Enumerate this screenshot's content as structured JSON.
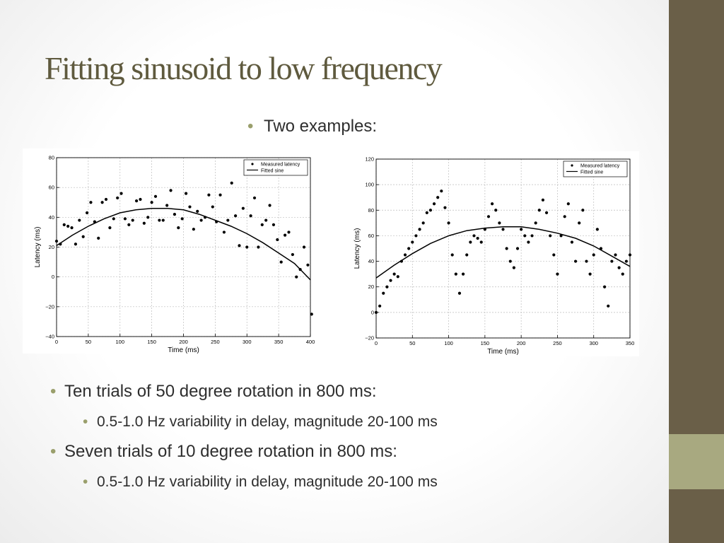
{
  "title": "Fitting sinusoid to low frequency",
  "colors": {
    "title": "#5f5a3e",
    "bullet_dot": "#9a9f6c",
    "side_dark": "#6a5f48",
    "side_light": "#a8a980",
    "text": "#2e2e2e",
    "axes": "#000000"
  },
  "bullets": {
    "intro": "Two examples:",
    "items": [
      {
        "text": "Ten trials of 50 degree rotation in 800 ms:",
        "sub": "0.5-1.0 Hz variability in delay, magnitude 20-100 ms"
      },
      {
        "text": "Seven trials of 10 degree rotation in 800 ms:",
        "sub": "0.5-1.0 Hz variability in delay, magnitude 20-100 ms"
      }
    ]
  },
  "chart_data": [
    {
      "type": "scatter",
      "xlabel": "Time (ms)",
      "ylabel": "Latency (ms)",
      "xlim": [
        0,
        400
      ],
      "ylim": [
        -40,
        80
      ],
      "xticks": [
        0,
        50,
        100,
        150,
        200,
        250,
        300,
        350,
        400
      ],
      "yticks": [
        -40,
        -20,
        0,
        20,
        40,
        60,
        80
      ],
      "grid": true,
      "legend_position": "top-right",
      "series": [
        {
          "name": "Measured latency",
          "kind": "points",
          "x": [
            0,
            6,
            12,
            18,
            24,
            30,
            36,
            42,
            48,
            54,
            60,
            66,
            72,
            78,
            84,
            90,
            96,
            102,
            108,
            114,
            120,
            126,
            132,
            138,
            144,
            150,
            156,
            162,
            168,
            174,
            180,
            186,
            192,
            198,
            204,
            210,
            216,
            222,
            228,
            234,
            240,
            246,
            252,
            258,
            264,
            270,
            276,
            282,
            288,
            294,
            300,
            306,
            312,
            318,
            324,
            330,
            336,
            342,
            348,
            354,
            360,
            366,
            372,
            378,
            384,
            390,
            396,
            402
          ],
          "y": [
            24,
            22,
            35,
            34,
            33,
            22,
            38,
            27,
            43,
            50,
            37,
            26,
            50,
            52,
            33,
            39,
            53,
            56,
            39,
            35,
            38,
            51,
            52,
            36,
            40,
            50,
            54,
            38,
            38,
            48,
            58,
            42,
            33,
            39,
            56,
            47,
            32,
            44,
            38,
            40,
            55,
            47,
            37,
            55,
            30,
            38,
            63,
            41,
            21,
            46,
            20,
            41,
            53,
            20,
            35,
            38,
            48,
            35,
            25,
            10,
            28,
            30,
            15,
            0,
            5,
            20,
            8,
            -25
          ]
        },
        {
          "name": "Fitted sine",
          "kind": "line",
          "x": [
            0,
            25,
            50,
            75,
            100,
            125,
            150,
            175,
            200,
            225,
            250,
            275,
            300,
            325,
            350,
            375,
            400
          ],
          "y": [
            21,
            28,
            34,
            39,
            43,
            45,
            46,
            46,
            45,
            42,
            38,
            34,
            29,
            23,
            16,
            9,
            -2
          ]
        }
      ]
    },
    {
      "type": "scatter",
      "xlabel": "Time (ms)",
      "ylabel": "Latency (ms)",
      "xlim": [
        0,
        350
      ],
      "ylim": [
        -20,
        120
      ],
      "xticks": [
        0,
        50,
        100,
        150,
        200,
        250,
        300,
        350
      ],
      "yticks": [
        -20,
        0,
        20,
        40,
        60,
        80,
        100,
        120
      ],
      "grid": true,
      "legend_position": "top-right",
      "series": [
        {
          "name": "Measured latency",
          "kind": "points",
          "x": [
            0,
            5,
            10,
            15,
            20,
            25,
            30,
            35,
            40,
            45,
            50,
            55,
            60,
            65,
            70,
            75,
            80,
            85,
            90,
            95,
            100,
            105,
            110,
            115,
            120,
            125,
            130,
            135,
            140,
            145,
            150,
            155,
            160,
            165,
            170,
            175,
            180,
            185,
            190,
            195,
            200,
            205,
            210,
            215,
            220,
            225,
            230,
            235,
            240,
            245,
            250,
            255,
            260,
            265,
            270,
            275,
            280,
            285,
            290,
            295,
            300,
            305,
            310,
            315,
            320,
            325,
            330,
            335,
            340,
            345,
            350
          ],
          "y": [
            0,
            5,
            15,
            20,
            25,
            30,
            28,
            40,
            45,
            50,
            55,
            60,
            65,
            70,
            78,
            80,
            85,
            90,
            95,
            82,
            70,
            45,
            30,
            15,
            30,
            45,
            55,
            60,
            58,
            55,
            65,
            75,
            85,
            80,
            70,
            65,
            50,
            40,
            35,
            50,
            65,
            60,
            55,
            60,
            70,
            80,
            88,
            78,
            60,
            45,
            30,
            60,
            75,
            85,
            55,
            40,
            70,
            80,
            40,
            30,
            45,
            65,
            50,
            20,
            5,
            40,
            45,
            35,
            30,
            40,
            45
          ]
        },
        {
          "name": "Fitted sine",
          "kind": "line",
          "x": [
            0,
            25,
            50,
            75,
            100,
            125,
            150,
            175,
            200,
            225,
            250,
            275,
            300,
            325,
            350
          ],
          "y": [
            27,
            37,
            46,
            54,
            60,
            64,
            66,
            67,
            67,
            65,
            62,
            58,
            52,
            44,
            36
          ]
        }
      ]
    }
  ]
}
